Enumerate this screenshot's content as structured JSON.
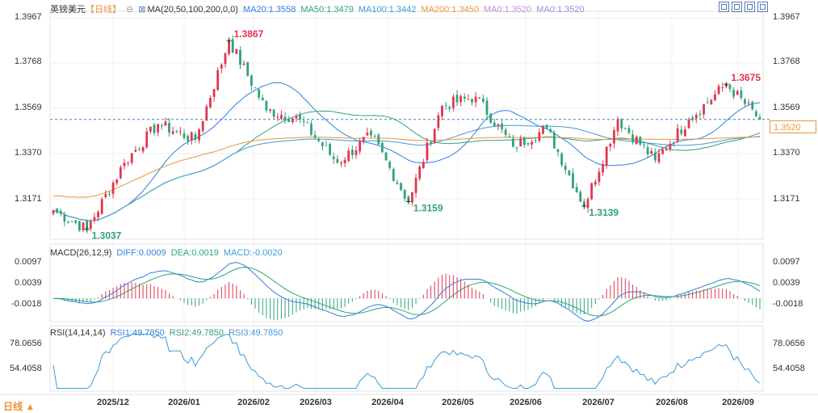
{
  "symbol": "英镑美元",
  "period": "【日线】",
  "period_button": "日线 ▲",
  "ma_legend": {
    "params": "MA(20,50,100,200,0,0)",
    "items": [
      {
        "label": "MA20:1.3558",
        "color": "#2f7fe0"
      },
      {
        "label": "MA50:1.3479",
        "color": "#2fa37a"
      },
      {
        "label": "MA100:1.3442",
        "color": "#3d9ad6"
      },
      {
        "label": "MA200:1.3450",
        "color": "#e8953b"
      },
      {
        "label": "MA0:1.3520",
        "color": "#c28be0"
      },
      {
        "label": "MA0:1.3520",
        "color": "#8b8fe0"
      }
    ]
  },
  "macd_legend": {
    "params": "MACD(26,12,9)",
    "items": [
      {
        "label": "DIFF:0.0009",
        "color": "#2f7fe0"
      },
      {
        "label": "DEA:0.0019",
        "color": "#2fa37a"
      },
      {
        "label": "MACD:-0.0020",
        "color": "#3d9ad6"
      }
    ]
  },
  "rsi_legend": {
    "params": "RSI(14,14,14)",
    "items": [
      {
        "label": "RSI1:49.7850",
        "color": "#2f7fe0"
      },
      {
        "label": "RSI2:49.7850",
        "color": "#2fa37a"
      },
      {
        "label": "RSI3:49.7850",
        "color": "#3d9ad6"
      }
    ]
  },
  "current_price": "1.3520",
  "price_axis": [
    "1.3967",
    "1.3768",
    "1.3569",
    "1.3370",
    "1.3171"
  ],
  "macd_axis": [
    "0.0097",
    "0.0039",
    "-0.0018"
  ],
  "rsi_axis": [
    "78.0656",
    "54.4058"
  ],
  "x_axis": [
    "2025/12",
    "2026/01",
    "2026/02",
    "2026/03",
    "2026/04",
    "2026/05",
    "2026/06",
    "2026/07",
    "2026/08",
    "2026/09"
  ],
  "annotations": [
    {
      "label": "1.3867",
      "value": 1.3867,
      "color": "#e0364f"
    },
    {
      "label": "1.3675",
      "value": 1.3675,
      "color": "#e0364f"
    },
    {
      "label": "1.3037",
      "value": 1.3037,
      "color": "#2fa37a"
    },
    {
      "label": "1.3159",
      "value": 1.3159,
      "color": "#2fa37a"
    },
    {
      "label": "1.3139",
      "value": 1.3139,
      "color": "#2fa37a"
    }
  ],
  "colors": {
    "up": "#e0364f",
    "down": "#2fa37a",
    "ma20": "#2f7fe0",
    "ma50": "#2fa37a",
    "ma100": "#3d9ad6",
    "ma200": "#e8953b"
  },
  "chart_data": {
    "type": "candlestick",
    "title": "英镑美元 日线",
    "price_range": [
      1.3037,
      1.3967
    ],
    "current_price": 1.352,
    "pivots": [
      {
        "date": "2025/11",
        "close": 1.312
      },
      {
        "date": "2025/11",
        "close": 1.3037
      },
      {
        "date": "2025/12",
        "close": 1.333
      },
      {
        "date": "2025/12",
        "close": 1.35
      },
      {
        "date": "2026/01",
        "close": 1.343
      },
      {
        "date": "2026/01",
        "close": 1.3867
      },
      {
        "date": "2026/02",
        "close": 1.356
      },
      {
        "date": "2026/02",
        "close": 1.352
      },
      {
        "date": "2026/03",
        "close": 1.333
      },
      {
        "date": "2026/03",
        "close": 1.345
      },
      {
        "date": "2026/03",
        "close": 1.3159
      },
      {
        "date": "2026/04",
        "close": 1.358
      },
      {
        "date": "2026/04",
        "close": 1.362
      },
      {
        "date": "2026/05",
        "close": 1.34
      },
      {
        "date": "2026/05",
        "close": 1.348
      },
      {
        "date": "2026/06",
        "close": 1.3139
      },
      {
        "date": "2026/07",
        "close": 1.352
      },
      {
        "date": "2026/07",
        "close": 1.334
      },
      {
        "date": "2026/08",
        "close": 1.352
      },
      {
        "date": "2026/08",
        "close": 1.3675
      },
      {
        "date": "2026/09",
        "close": 1.352
      }
    ],
    "ma_latest": {
      "MA20": 1.3558,
      "MA50": 1.3479,
      "MA100": 1.3442,
      "MA200": 1.345
    },
    "macd_latest": {
      "DIFF": 0.0009,
      "DEA": 0.0019,
      "MACD": -0.002
    },
    "macd_range": [
      -0.0045,
      0.0105
    ],
    "rsi_latest": {
      "RSI1": 49.785,
      "RSI2": 49.785,
      "RSI3": 49.785
    },
    "rsi_range": [
      40,
      86
    ]
  }
}
